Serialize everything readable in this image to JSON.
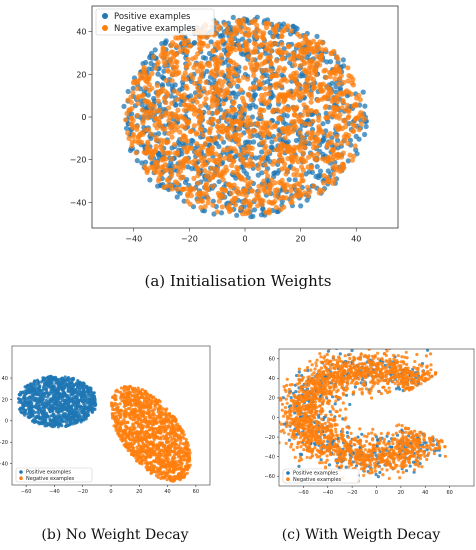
{
  "colors": {
    "positive": "#1f77b4",
    "negative": "#ff7f0e"
  },
  "chart_data": [
    {
      "id": "a",
      "type": "scatter",
      "caption": "(a)  Initialisation Weights",
      "legend": [
        "Positive examples",
        "Negative examples"
      ],
      "legend_position": "top-left",
      "xlim": [
        -55,
        55
      ],
      "ylim": [
        -52,
        52
      ],
      "xticks": [
        -40,
        -20,
        0,
        20,
        40
      ],
      "yticks": [
        -40,
        -20,
        0,
        20,
        40
      ],
      "xtick_labels": [
        "−40",
        "−20",
        "0",
        "20",
        "40"
      ],
      "ytick_labels": [
        "−40",
        "−20",
        "0",
        "20",
        "40"
      ],
      "series": [
        {
          "name": "Positive examples",
          "shape": "ellipse",
          "center": [
            0,
            0
          ],
          "radii": [
            44,
            47
          ]
        },
        {
          "name": "Negative examples",
          "shape": "ellipse",
          "center": [
            0,
            0
          ],
          "radii": [
            43,
            46
          ]
        }
      ]
    },
    {
      "id": "b",
      "type": "scatter",
      "caption": "(b)  No Weight Decay",
      "legend": [
        "Positive examples",
        "Negative examples"
      ],
      "legend_position": "lower-left",
      "xlim": [
        -70,
        70
      ],
      "ylim": [
        -60,
        70
      ],
      "xticks": [
        -60,
        -40,
        -20,
        0,
        20,
        40,
        60
      ],
      "yticks": [
        -40,
        -20,
        0,
        20,
        40
      ],
      "xtick_labels": [
        "−60",
        "−40",
        "−20",
        "0",
        "20",
        "40",
        "60"
      ],
      "ytick_labels": [
        "−40",
        "−20",
        "0",
        "20",
        "40"
      ],
      "series": [
        {
          "name": "Positive examples",
          "shape": "ellipse",
          "center": [
            -38,
            18
          ],
          "radii": [
            28,
            24
          ]
        },
        {
          "name": "Negative examples",
          "shape": "rotated-ellipse",
          "center": [
            28,
            -12
          ],
          "radii": [
            22,
            48
          ],
          "angle_deg": 25
        }
      ]
    },
    {
      "id": "c",
      "type": "scatter",
      "caption": "(c)  With Weigth Decay",
      "legend": [
        "Positive examples",
        "Negative examples"
      ],
      "legend_position": "lower-left",
      "xlim": [
        -80,
        80
      ],
      "ylim": [
        -70,
        70
      ],
      "xticks": [
        -60,
        -40,
        -20,
        0,
        20,
        40,
        60
      ],
      "yticks": [
        -60,
        -40,
        -20,
        0,
        20,
        40,
        60
      ],
      "xtick_labels": [
        "−60",
        "−40",
        "−20",
        "0",
        "20",
        "40",
        "60"
      ],
      "ytick_labels": [
        "−60",
        "−40",
        "−20",
        "0",
        "20",
        "40",
        "60"
      ],
      "series": [
        {
          "name": "Positive examples",
          "shape": "crescent"
        },
        {
          "name": "Negative examples",
          "shape": "crescent"
        }
      ]
    }
  ]
}
